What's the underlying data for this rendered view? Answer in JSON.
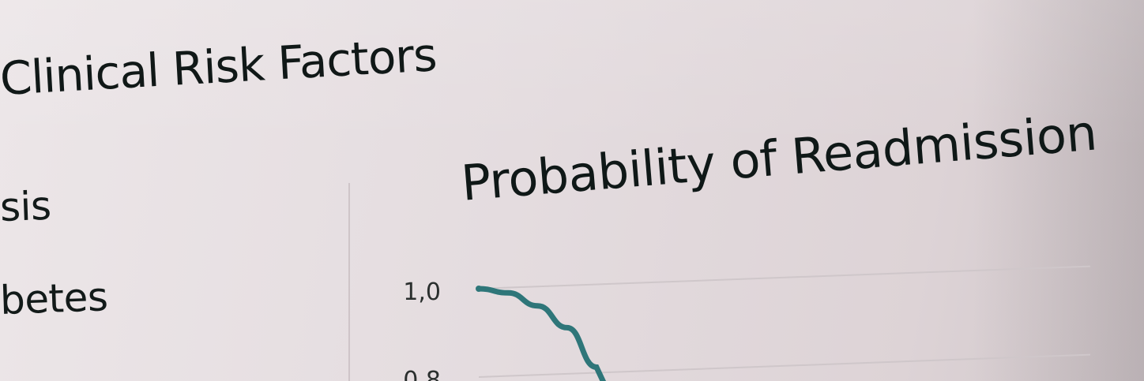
{
  "sidebar": {
    "title": "Clinical Risk Factors",
    "items": [
      {
        "label": "sis"
      },
      {
        "label": "betes"
      },
      {
        "label": ""
      }
    ]
  },
  "chart_data": {
    "type": "line",
    "title": "Probability of Readmission",
    "xlabel": "",
    "ylabel": "",
    "y_ticks": [
      "1,0",
      "0,8"
    ],
    "ylim": [
      0.8,
      1.0
    ],
    "grid": true,
    "series": [
      {
        "x": [
          0,
          1,
          2,
          3,
          4
        ],
        "values": [
          1.0,
          0.99,
          0.96,
          0.91,
          0.82
        ]
      }
    ],
    "colors": {
      "line": "#2e7679",
      "grid": "#cfc7ca",
      "text": "#121a19"
    }
  }
}
